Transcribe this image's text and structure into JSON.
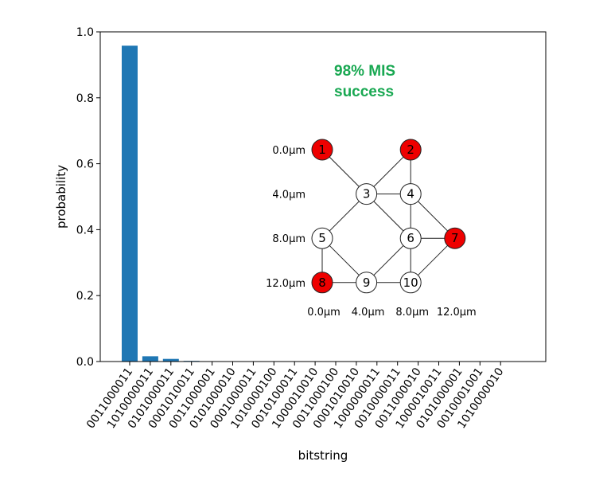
{
  "chart_data": {
    "type": "bar",
    "xlabel": "bitstring",
    "ylabel": "probability",
    "ylim": [
      0,
      1.0
    ],
    "yticks": [
      "0.0",
      "0.2",
      "0.4",
      "0.6",
      "0.8",
      "1.0"
    ],
    "categories": [
      "0011000011",
      "1010000011",
      "0101000011",
      "0001010011",
      "0011000001",
      "0101000010",
      "0001000011",
      "1010000100",
      "0010100011",
      "1000010010",
      "0011000100",
      "0001010010",
      "1000000011",
      "0010000011",
      "0011000010",
      "1000010011",
      "0101000001",
      "0010001001",
      "1010000010"
    ],
    "values": [
      0.958,
      0.016,
      0.008,
      0.002,
      0.001,
      0.001,
      0.001,
      0.0008,
      0.0008,
      0.0006,
      0.0006,
      0.0005,
      0.0005,
      0.0004,
      0.0004,
      0.0003,
      0.0003,
      0.0003,
      0.0002
    ],
    "bar_color": "#1f77b4",
    "annotation": [
      "98% MIS",
      "success"
    ],
    "annotation_color": "#19a852"
  },
  "inset_graph": {
    "node_fill_selected": "#ee0000",
    "node_fill_default": "#ffffff",
    "nodes": [
      {
        "label": "1",
        "x_um": 0,
        "y_um": 0,
        "selected": true
      },
      {
        "label": "2",
        "x_um": 8,
        "y_um": 0,
        "selected": true
      },
      {
        "label": "3",
        "x_um": 4,
        "y_um": 4,
        "selected": false
      },
      {
        "label": "4",
        "x_um": 8,
        "y_um": 4,
        "selected": false
      },
      {
        "label": "5",
        "x_um": 0,
        "y_um": 8,
        "selected": false
      },
      {
        "label": "6",
        "x_um": 8,
        "y_um": 8,
        "selected": false
      },
      {
        "label": "7",
        "x_um": 12,
        "y_um": 8,
        "selected": true
      },
      {
        "label": "8",
        "x_um": 0,
        "y_um": 12,
        "selected": true
      },
      {
        "label": "9",
        "x_um": 4,
        "y_um": 12,
        "selected": false
      },
      {
        "label": "10",
        "x_um": 8,
        "y_um": 12,
        "selected": false
      }
    ],
    "edges": [
      [
        "1",
        "3"
      ],
      [
        "2",
        "3"
      ],
      [
        "2",
        "4"
      ],
      [
        "3",
        "4"
      ],
      [
        "3",
        "5"
      ],
      [
        "3",
        "6"
      ],
      [
        "4",
        "6"
      ],
      [
        "4",
        "7"
      ],
      [
        "5",
        "8"
      ],
      [
        "5",
        "9"
      ],
      [
        "6",
        "7"
      ],
      [
        "6",
        "9"
      ],
      [
        "6",
        "10"
      ],
      [
        "7",
        "10"
      ],
      [
        "8",
        "9"
      ],
      [
        "9",
        "10"
      ]
    ],
    "row_labels": [
      "0.0μm",
      "4.0μm",
      "8.0μm",
      "12.0μm"
    ],
    "col_labels": [
      "0.0μm",
      "4.0μm",
      "8.0μm",
      "12.0μm"
    ]
  }
}
